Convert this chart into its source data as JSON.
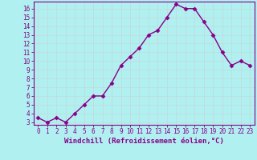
{
  "x": [
    0,
    1,
    2,
    3,
    4,
    5,
    6,
    7,
    8,
    9,
    10,
    11,
    12,
    13,
    14,
    15,
    16,
    17,
    18,
    19,
    20,
    21,
    22,
    23
  ],
  "y": [
    3.5,
    3.0,
    3.5,
    3.0,
    4.0,
    5.0,
    6.0,
    6.0,
    7.5,
    9.5,
    10.5,
    11.5,
    13.0,
    13.5,
    15.0,
    16.5,
    16.0,
    16.0,
    14.5,
    13.0,
    11.0,
    9.5,
    10.0,
    9.5
  ],
  "line_color": "#880088",
  "marker": "D",
  "marker_size": 2.5,
  "bg_color": "#b0f0f0",
  "grid_color": "#c0dede",
  "xlabel": "Windchill (Refroidissement éolien,°C)",
  "xlim": [
    -0.5,
    23.5
  ],
  "ylim": [
    2.7,
    16.8
  ],
  "yticks": [
    3,
    4,
    5,
    6,
    7,
    8,
    9,
    10,
    11,
    12,
    13,
    14,
    15,
    16
  ],
  "xticks": [
    0,
    1,
    2,
    3,
    4,
    5,
    6,
    7,
    8,
    9,
    10,
    11,
    12,
    13,
    14,
    15,
    16,
    17,
    18,
    19,
    20,
    21,
    22,
    23
  ],
  "tick_color": "#880088",
  "label_color": "#880088",
  "axis_color": "#880088",
  "xlabel_fontsize": 6.5,
  "tick_fontsize": 5.5,
  "linewidth": 1.0
}
